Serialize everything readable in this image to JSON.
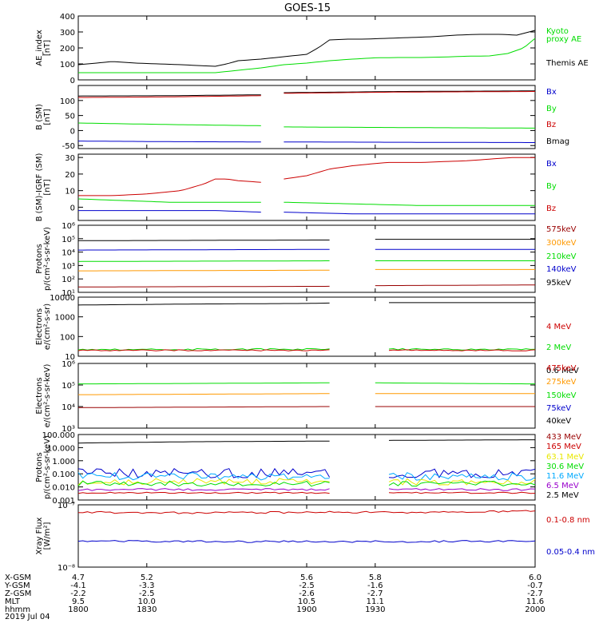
{
  "title": "GOES-15",
  "date_label": "2019 Jul 04",
  "colors": {
    "black": "#000000",
    "red": "#cc0000",
    "darkred": "#990000",
    "green": "#00dd00",
    "blue": "#0000cc",
    "orange": "#ff9900",
    "yellow": "#e8e800",
    "cyan": "#00aaff",
    "purple": "#9900cc"
  },
  "footer": {
    "row_labels": [
      "X-GSM",
      "Y-GSM",
      "Z-GSM",
      "MLT",
      "hhmm"
    ],
    "columns": [
      {
        "time": 1800,
        "values": [
          "4.7",
          "-4.1",
          "-2.2",
          "9.5",
          "1800"
        ]
      },
      {
        "time": 1830,
        "values": [
          "5.2",
          "-3.3",
          "-2.5",
          "10.0",
          "1830"
        ]
      },
      {
        "time": 1900,
        "values": [
          "5.6",
          "-2.5",
          "-2.6",
          "10.5",
          "1900"
        ]
      },
      {
        "time": 1930,
        "values": [
          "5.8",
          "-1.6",
          "-2.7",
          "11.1",
          "1930"
        ]
      },
      {
        "time": 2000,
        "values": [
          "6.0",
          "-0.7",
          "-2.7",
          "11.6",
          "2000"
        ]
      }
    ]
  },
  "chart_data": [
    {
      "type": "line",
      "ylabel": [
        "AE_index",
        "[nT]"
      ],
      "ylim": [
        0,
        400
      ],
      "yscale": "linear",
      "yticks": [
        "0",
        "100",
        "200",
        "300",
        "400"
      ],
      "xlim": [
        1800,
        2000
      ],
      "legend": [
        {
          "text": "Kyoto",
          "color": "#00dd00"
        },
        {
          "text": "proxy AE",
          "color": "#00dd00"
        },
        {
          "text": "Themis AE",
          "color": "#000000"
        }
      ],
      "series": [
        {
          "color": "#000000",
          "x": [
            1800,
            1808,
            1815,
            1825,
            1835,
            1845,
            1855,
            1860,
            1865,
            1870,
            1880,
            1890,
            1900,
            1905,
            1910,
            1918,
            1925,
            1935,
            1945,
            1955,
            1965,
            1975,
            1985,
            1992,
            2000
          ],
          "y": [
            95,
            105,
            115,
            105,
            100,
            95,
            88,
            85,
            100,
            120,
            130,
            145,
            160,
            200,
            250,
            255,
            255,
            260,
            265,
            270,
            280,
            285,
            285,
            280,
            310
          ]
        },
        {
          "color": "#00dd00",
          "x": [
            1800,
            1820,
            1835,
            1850,
            1860,
            1870,
            1880,
            1890,
            1900,
            1910,
            1920,
            1930,
            1940,
            1950,
            1960,
            1970,
            1980,
            1988,
            1995,
            2000
          ],
          "y": [
            45,
            45,
            45,
            45,
            45,
            60,
            75,
            95,
            105,
            120,
            130,
            138,
            140,
            140,
            143,
            148,
            150,
            165,
            200,
            260
          ]
        }
      ]
    },
    {
      "type": "line",
      "ylabel": [
        "B (SM)",
        "[nT]"
      ],
      "ylim": [
        -60,
        150
      ],
      "yscale": "linear",
      "yticks": [
        "-50",
        "0",
        "50",
        "100"
      ],
      "xlim": [
        1800,
        2000
      ],
      "gaps": [
        [
          1880,
          1890
        ]
      ],
      "legend": [
        {
          "text": "Bx",
          "color": "#0000cc"
        },
        {
          "text": "By",
          "color": "#00dd00"
        },
        {
          "text": "Bz",
          "color": "#cc0000"
        },
        {
          "text": "Bmag",
          "color": "#000000"
        }
      ],
      "series": [
        {
          "color": "#000000",
          "x": [
            1800,
            1840,
            1880,
            1890,
            1940,
            2000
          ],
          "y": [
            115,
            116,
            119,
            126,
            130,
            132
          ]
        },
        {
          "color": "#cc0000",
          "x": [
            1800,
            1840,
            1880,
            1890,
            1940,
            2000
          ],
          "y": [
            110,
            112,
            116,
            124,
            128,
            130
          ]
        },
        {
          "color": "#00dd00",
          "x": [
            1800,
            1840,
            1880,
            1890,
            1940,
            2000
          ],
          "y": [
            25,
            20,
            16,
            12,
            10,
            8
          ]
        },
        {
          "color": "#0000cc",
          "x": [
            1800,
            1840,
            1880,
            1890,
            1940,
            2000
          ],
          "y": [
            -35,
            -37,
            -38,
            -38,
            -39,
            -40
          ]
        }
      ]
    },
    {
      "type": "line",
      "ylabel": [
        "B (SM)-IGRF (SM)",
        "[nT]"
      ],
      "ylim": [
        -8,
        32
      ],
      "yscale": "linear",
      "yticks": [
        "0",
        "10",
        "20",
        "30"
      ],
      "xlim": [
        1800,
        2000
      ],
      "gaps": [
        [
          1880,
          1890
        ]
      ],
      "legend": [
        {
          "text": "Bx",
          "color": "#0000cc"
        },
        {
          "text": "By",
          "color": "#00dd00"
        },
        {
          "text": "Bz",
          "color": "#cc0000"
        }
      ],
      "series": [
        {
          "color": "#cc0000",
          "x": [
            1800,
            1815,
            1830,
            1845,
            1855,
            1860,
            1865,
            1870,
            1880,
            1890,
            1900,
            1910,
            1920,
            1935,
            1950,
            1970,
            1990,
            2000
          ],
          "y": [
            7,
            7,
            8,
            10,
            14,
            17,
            17,
            16,
            15,
            17,
            19,
            23,
            25,
            27,
            27,
            28,
            30,
            30
          ]
        },
        {
          "color": "#00dd00",
          "x": [
            1800,
            1820,
            1840,
            1860,
            1880,
            1890,
            1920,
            1950,
            2000
          ],
          "y": [
            5,
            4,
            3,
            3,
            3,
            3,
            2,
            1,
            1
          ]
        },
        {
          "color": "#0000cc",
          "x": [
            1800,
            1820,
            1840,
            1860,
            1880,
            1890,
            1920,
            1950,
            2000
          ],
          "y": [
            -2,
            -2,
            -2,
            -2,
            -3,
            -3,
            -4,
            -4,
            -4
          ]
        }
      ]
    },
    {
      "type": "line",
      "ylabel": [
        "Protons",
        "p/(cm²-s-sr-keV)"
      ],
      "ylim": [
        1,
        6
      ],
      "yscale": "log10",
      "yticks": [
        "10¹",
        "10²",
        "10³",
        "10⁴",
        "10⁵",
        "10⁶"
      ],
      "xlim": [
        1800,
        2000
      ],
      "gaps": [
        [
          1910,
          1930
        ]
      ],
      "legend": [
        {
          "text": "575keV",
          "color": "#990000"
        },
        {
          "text": "300keV",
          "color": "#ff9900"
        },
        {
          "text": "210keV",
          "color": "#00dd00"
        },
        {
          "text": "140keV",
          "color": "#0000cc"
        },
        {
          "text": "95keV",
          "color": "#000000"
        }
      ],
      "series": [
        {
          "color": "#000000",
          "x": [
            1800,
            1910,
            1930,
            2000
          ],
          "y": [
            4.85,
            4.9,
            4.95,
            4.95
          ]
        },
        {
          "color": "#0000cc",
          "x": [
            1800,
            1910,
            1930,
            2000
          ],
          "y": [
            4.15,
            4.2,
            4.2,
            4.2
          ]
        },
        {
          "color": "#00dd00",
          "x": [
            1800,
            1910,
            1930,
            2000
          ],
          "y": [
            3.3,
            3.35,
            3.35,
            3.35
          ]
        },
        {
          "color": "#ff9900",
          "x": [
            1800,
            1910,
            1930,
            2000
          ],
          "y": [
            2.6,
            2.65,
            2.7,
            2.7
          ]
        },
        {
          "color": "#990000",
          "x": [
            1800,
            1910,
            1930,
            2000
          ],
          "y": [
            1.4,
            1.45,
            1.5,
            1.55
          ]
        }
      ]
    },
    {
      "type": "line",
      "ylabel": [
        "Electrons",
        "e/(cm²-s-sr)"
      ],
      "ylim": [
        1,
        4
      ],
      "yscale": "log10",
      "yticks": [
        "10",
        "100",
        "1000",
        "10000"
      ],
      "xlim": [
        1800,
        2000
      ],
      "gaps": [
        [
          1910,
          1935
        ]
      ],
      "legend": [
        {
          "text": "4 MeV",
          "color": "#cc0000"
        },
        {
          "text": "2 MeV",
          "color": "#00dd00"
        },
        {
          "text": "0.6 MeV",
          "color": "#000000"
        }
      ],
      "series": [
        {
          "color": "#000000",
          "x": [
            1800,
            1850,
            1900,
            1910,
            1935,
            1960,
            2000
          ],
          "y": [
            3.6,
            3.65,
            3.68,
            3.7,
            3.72,
            3.72,
            3.72
          ]
        },
        {
          "color": "#00dd00",
          "x": [
            1800,
            1910,
            1935,
            2000
          ],
          "y": [
            1.35,
            1.35,
            1.35,
            1.35
          ],
          "noise": 0.04
        },
        {
          "color": "#cc0000",
          "x": [
            1800,
            1910,
            1935,
            2000
          ],
          "y": [
            1.3,
            1.3,
            1.3,
            1.3
          ],
          "noise": 0.03
        }
      ]
    },
    {
      "type": "line",
      "ylabel": [
        "Electrons",
        "e/(cm²-s-sr-keV)"
      ],
      "ylim": [
        3,
        6
      ],
      "yscale": "log10",
      "yticks": [
        "10³",
        "10⁴",
        "10⁵",
        "10⁶"
      ],
      "xlim": [
        1800,
        2000
      ],
      "gaps": [
        [
          1910,
          1930
        ]
      ],
      "legend": [
        {
          "text": "475keV",
          "color": "#cc0000"
        },
        {
          "text": "275keV",
          "color": "#ff9900"
        },
        {
          "text": "150keV",
          "color": "#00dd00"
        },
        {
          "text": "75keV",
          "color": "#0000cc"
        },
        {
          "text": "40keV",
          "color": "#000000"
        }
      ],
      "series": [
        {
          "color": "#00dd00",
          "x": [
            1800,
            1910,
            1930,
            2000
          ],
          "y": [
            5.05,
            5.1,
            5.1,
            5.05
          ]
        },
        {
          "color": "#ff9900",
          "x": [
            1800,
            1910,
            1930,
            2000
          ],
          "y": [
            4.55,
            4.6,
            4.6,
            4.6
          ]
        },
        {
          "color": "#990000",
          "x": [
            1800,
            1910,
            1930,
            2000
          ],
          "y": [
            3.95,
            4.0,
            4.0,
            4.0
          ]
        }
      ]
    },
    {
      "type": "line",
      "ylabel": [
        "Protons",
        "p/(cm²-s-sr-keV)"
      ],
      "ylim": [
        -3,
        2
      ],
      "yscale": "log10",
      "yticks": [
        "0.001",
        "0.010",
        "0.100",
        "1.000",
        "10.000",
        "100.000"
      ],
      "xlim": [
        1800,
        2000
      ],
      "gaps": [
        [
          1910,
          1935
        ]
      ],
      "legend": [
        {
          "text": "433 MeV",
          "color": "#990000"
        },
        {
          "text": "165 MeV",
          "color": "#cc0000"
        },
        {
          "text": "63.1 MeV",
          "color": "#e8e800"
        },
        {
          "text": "30.6 MeV",
          "color": "#00dd00"
        },
        {
          "text": "11.6 MeV",
          "color": "#00aaff"
        },
        {
          "text": "6.5 MeV",
          "color": "#9900cc"
        },
        {
          "text": "2.5 MeV",
          "color": "#000000"
        }
      ],
      "series": [
        {
          "color": "#000000",
          "x": [
            1800,
            1850,
            1910,
            1935,
            2000
          ],
          "y": [
            1.35,
            1.45,
            1.5,
            1.55,
            1.6
          ]
        },
        {
          "color": "#0000cc",
          "x": [
            1800,
            1910,
            1935,
            2000
          ],
          "y": [
            -0.95,
            -0.95,
            -0.95,
            -0.95
          ],
          "noise": 0.35
        },
        {
          "color": "#00aaff",
          "x": [
            1800,
            1910,
            1935,
            2000
          ],
          "y": [
            -1.2,
            -1.2,
            -1.2,
            -1.2
          ],
          "noise": 0.3
        },
        {
          "color": "#e8e800",
          "x": [
            1800,
            1910,
            1935,
            2000
          ],
          "y": [
            -1.6,
            -1.6,
            -1.6,
            -1.6
          ],
          "noise": 0.25
        },
        {
          "color": "#00dd00",
          "x": [
            1800,
            1910,
            1935,
            2000
          ],
          "y": [
            -1.75,
            -1.75,
            -1.75,
            -1.75
          ],
          "noise": 0.2
        },
        {
          "color": "#9900cc",
          "x": [
            1800,
            1910,
            1935,
            2000
          ],
          "y": [
            -2.2,
            -2.2,
            -2.2,
            -2.2
          ],
          "noise": 0.08
        },
        {
          "color": "#cc0000",
          "x": [
            1800,
            1910,
            1935,
            2000
          ],
          "y": [
            -2.45,
            -2.45,
            -2.45,
            -2.45
          ],
          "noise": 0.05
        }
      ]
    },
    {
      "type": "line",
      "ylabel": [
        "Xray Flux",
        "[W/m²]"
      ],
      "ylim": [
        -8,
        -7
      ],
      "yscale": "log10",
      "yticks": [
        "10⁻⁸",
        "10⁻⁷"
      ],
      "xlim": [
        1800,
        2000
      ],
      "legend": [
        {
          "text": "0.1-0.8 nm",
          "color": "#cc0000"
        },
        {
          "text": "0.05-0.4 nm",
          "color": "#0000cc"
        }
      ],
      "series": [
        {
          "color": "#cc0000",
          "x": [
            1800,
            1850,
            1900,
            1950,
            2000
          ],
          "y": [
            -7.12,
            -7.13,
            -7.12,
            -7.12,
            -7.1
          ],
          "noise": 0.015
        },
        {
          "color": "#0000cc",
          "x": [
            1800,
            1850,
            1900,
            1950,
            2000
          ],
          "y": [
            -7.58,
            -7.59,
            -7.59,
            -7.59,
            -7.58
          ],
          "noise": 0.015
        }
      ]
    }
  ]
}
